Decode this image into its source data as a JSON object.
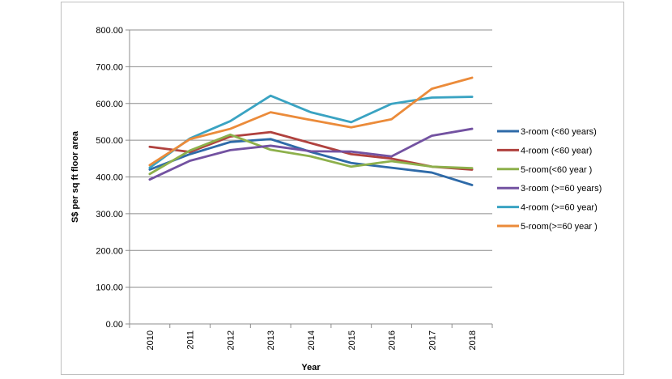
{
  "chart_data": {
    "type": "line",
    "title": "",
    "xlabel": "Year",
    "ylabel": "S$ per sq ft floor area",
    "ylim": [
      0,
      800
    ],
    "yticks": [
      "0.00",
      "100.00",
      "200.00",
      "300.00",
      "400.00",
      "500.00",
      "600.00",
      "700.00",
      "800.00"
    ],
    "categories": [
      "2010",
      "2011",
      "2012",
      "2013",
      "2014",
      "2015",
      "2016",
      "2017",
      "2018"
    ],
    "grid": true,
    "legend_position": "right",
    "series": [
      {
        "name": "3-room (<60 years)",
        "color": "#2e6aa8",
        "values": [
          420,
          462,
          495,
          503,
          468,
          438,
          425,
          412,
          378
        ]
      },
      {
        "name": "4-room (<60 year)",
        "color": "#b0413e",
        "values": [
          482,
          468,
          510,
          522,
          492,
          462,
          450,
          428,
          420
        ]
      },
      {
        "name": "5-room(<60 year )",
        "color": "#8db04b",
        "values": [
          408,
          472,
          515,
          474,
          456,
          428,
          443,
          428,
          424
        ]
      },
      {
        "name": "3-room (>=60 years)",
        "color": "#7352a1",
        "values": [
          393,
          444,
          473,
          485,
          470,
          469,
          456,
          512,
          531
        ]
      },
      {
        "name": "4-room (>=60 year)",
        "color": "#3aa3c2",
        "values": [
          425,
          505,
          552,
          621,
          576,
          549,
          599,
          616,
          618
        ]
      },
      {
        "name": "5-room(>=60 year )",
        "color": "#eb8b3a",
        "values": [
          432,
          503,
          531,
          576,
          555,
          535,
          557,
          640,
          670
        ]
      }
    ]
  }
}
